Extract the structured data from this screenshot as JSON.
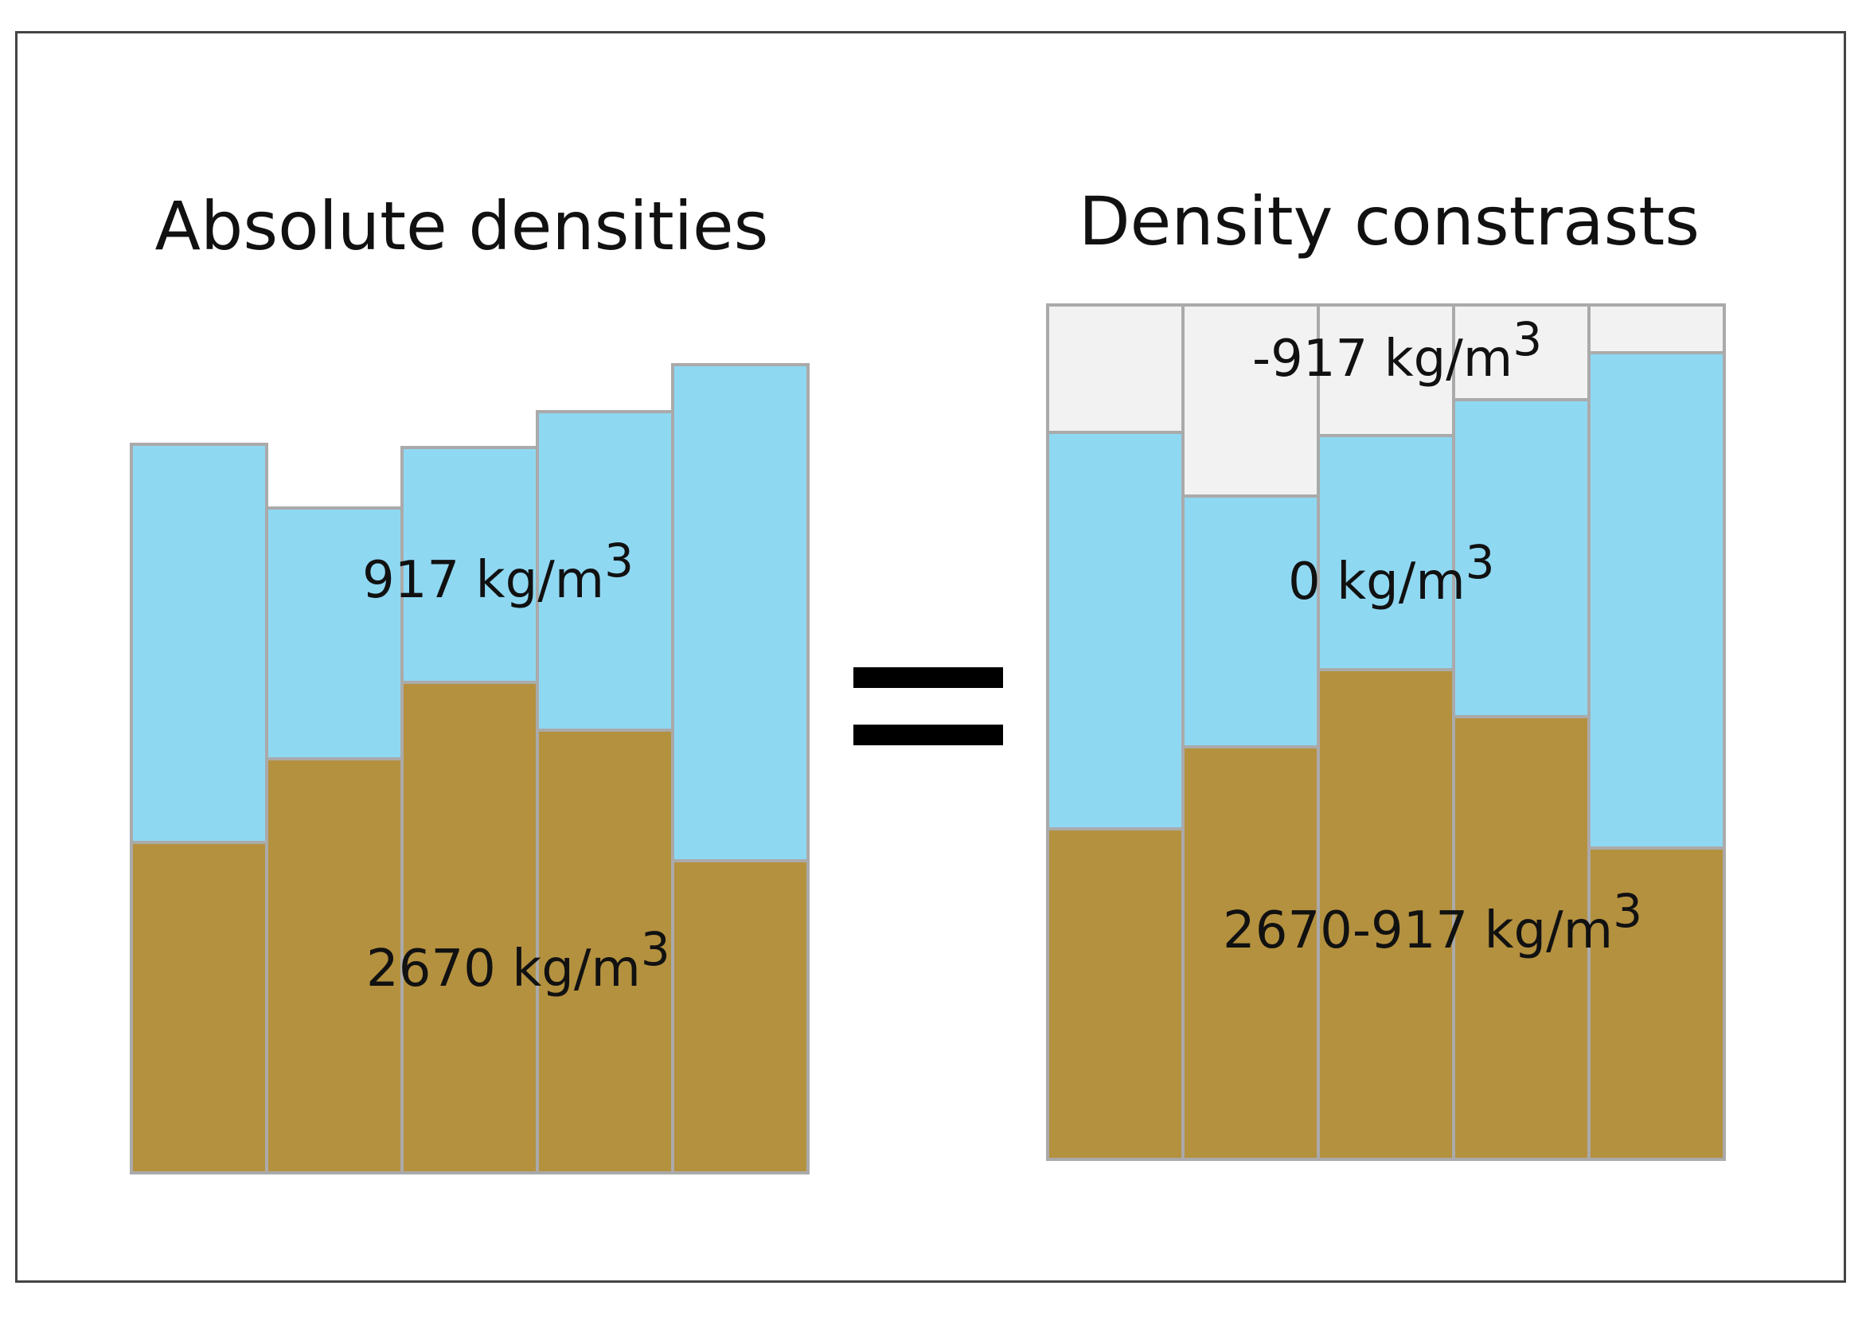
{
  "left_panel": {
    "title": "Absolute densities",
    "bedrock_label": "2670 kg/m",
    "ice_label": "917 kg/m",
    "exponent": "3"
  },
  "right_panel": {
    "title": "Density constrasts",
    "air_label": "-917 kg/m",
    "ice_label": "0 kg/m",
    "bedrock_label": "2670-917 kg/m",
    "exponent": "3"
  },
  "colors": {
    "bedrock": "#b4913f",
    "ice": "#8fd8f2",
    "air": "#f2f2f2",
    "outline": "#aaaaaa",
    "equals": "#000000"
  }
}
